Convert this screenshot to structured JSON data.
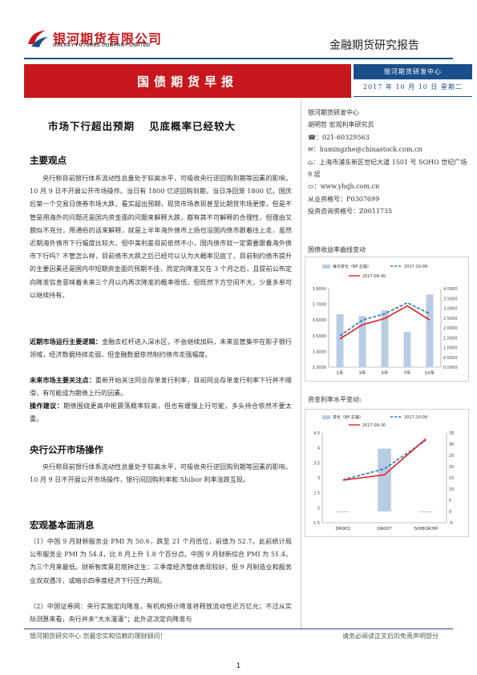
{
  "header": {
    "company_cn": "银河期货有限公司",
    "company_en": "GALAXY FUTURES COMPANY LIMITED",
    "report_type": "金融期货研究报告",
    "banner": "国债期货早报",
    "dept": "银河期货研发中心",
    "date": "2017 年 10 月 10 日   星期二"
  },
  "title": {
    "part1": "市场下行超出预期",
    "part2": "见底概率已经较大"
  },
  "sections": {
    "main_view": {
      "heading": "主要观点",
      "para1": "央行称目前银行体系流动性总量处于较高水平，可吸收央行逆回购到期等因素的影响，10 月 9 日不开展公开市场操作。当日有 1800 亿逆回购到期，当日净回笼 1800 亿。国庆后第一个交易日债券市场大跌，看实超出预期，现货市场表现甚至比期货市场更惨，但是不管是用海外的问题还是国内资金面的问题来解释大跌，都有其不可解释的合理性，但理由又貌似不充分，用通俗的话来解释，就是上半年海外债市上扬也没国内债市跟着往上走，虽然近期海外债市下行幅度比较大，但中美利差目前依然不小，国内债市就一定需要跟着海外债市下行吗？不管怎么样，目前债市大跌之后已经可以认为大概率见底了，目前制约债市提升的主要因素还是国内中短期资金面的预期不佳，而定向降准又在 3 个月之后，且提前公布定向降准信息意味着未来三个月以内再次降准的概率很低，但既然下方空间不大，少量多单可以继续持有。",
      "logic_label": "近期市场运行主要逻辑：",
      "logic_text": "金融去杠杆进入深水区，不会继续加码，未来监管集中在影子银行领域，经济数据持续走弱，但金融数据依然制约债市走强幅度。",
      "focus_label": "未来市场主要关注点：",
      "focus_text": "重新开始关注同业存单发行利率，目前同业存单发行利率下行并不顺滑，有可能成为期债上行的因素。",
      "advice_label": "操作建议：",
      "advice_text": "期债围绕更高中枢震荡概率较高，但也有缓慢上行可能，多头持仓依然不要太重。"
    },
    "open_market": {
      "heading": "央行公开市场操作",
      "para": "央行称目前银行体系流动性总量处于较高水平，可吸收央行逆回购到期等因素的影响，10 月 9 日不开展公开市场操作，银行间回购利率和 Shibor 利率涨跌互现。"
    },
    "macro": {
      "heading": "宏观基本面消息",
      "item1": "（1）中国 9 月财新服务业 PMI 为 50.6，跌至 21 个月低位，前值为 52.7。此前统计局公布服务业 PMI 为 54.4，比 8 月上升 1.8 个百分点。中国 9 月财新综合 PMI 为 51.4，为三个月来最低。财新智库莫尼塔钟正生：三季度经济整体表现较好，但 9 月制造业和服务业双双遇冷，或暗示四季度经济下行压力再现。",
      "item2": "（2）中国证券网：央行实施定向降准，有机构预计降准将释放流动性近万亿元；不过从实际测算来看，央行并未“大水漫灌”；此外这次定向降准与"
    }
  },
  "sidebar": {
    "org": "银河期货研发中心",
    "analyst": "胡明哲   宏观利率研究员",
    "phone": "021-60329563",
    "email": "humingzhe@chinastock.com.cn",
    "address": "上海市浦东新区世纪大道 1501 号 SOHO 世纪广场 9 层",
    "website": "www.yhqh.com.cn",
    "cert1": "从业资格号：F0307699",
    "cert2": "投资咨询资格号：Z0011735"
  },
  "icons": [
    "phone-icon",
    "email-icon",
    "location-icon",
    "monitor-icon"
  ],
  "chart_data": [
    {
      "type": "bar",
      "title": "国债收益率曲线变动",
      "categories": [
        "1年",
        "3年",
        "5年",
        "7年",
        "10年"
      ],
      "series": [
        {
          "name": "每日变化（BP,右轴）",
          "kind": "bar",
          "axis": "right",
          "values": [
            2.7,
            2.6,
            2.9,
            1.8,
            3.7
          ]
        },
        {
          "name": "2017-10-09",
          "kind": "line",
          "style": "dashed",
          "axis": "left",
          "values": [
            3.5,
            3.6,
            3.64,
            3.71,
            3.64
          ]
        },
        {
          "name": "2017-09-30",
          "kind": "line",
          "style": "solid",
          "axis": "left",
          "values": [
            3.48,
            3.57,
            3.61,
            3.69,
            3.6
          ]
        }
      ],
      "ylim_left": [
        3.3,
        3.8
      ],
      "ylim_right": [
        0.0,
        4.0
      ],
      "yticks_left": [
        "3.3000",
        "3.4000",
        "3.5000",
        "3.6000",
        "3.7000",
        "3.8000"
      ],
      "yticks_right": [
        "0.0000",
        "0.5000",
        "1.0000",
        "1.5000",
        "2.0000",
        "2.5000",
        "3.0000",
        "3.5000",
        "4.0000"
      ],
      "colors": {
        "bar": "#b8cce4",
        "dashed": "#2e75b6",
        "solid": "#e02020"
      }
    },
    {
      "type": "bar",
      "title": "资金利率水平变动:",
      "categories": [
        "DR001",
        "DR007",
        "SHIBOR3M"
      ],
      "series": [
        {
          "name": "变化（BP,右轴）",
          "kind": "bar",
          "axis": "right",
          "values": [
            0,
            28,
            0
          ]
        },
        {
          "name": "2017-10-09",
          "kind": "line",
          "style": "dashed",
          "axis": "left",
          "values": [
            2.93,
            3.3,
            4.25
          ]
        },
        {
          "name": "2017-09-30",
          "kind": "line",
          "style": "solid",
          "axis": "left",
          "values": [
            2.92,
            3.1,
            4.3
          ]
        }
      ],
      "ylim_left": [
        1.5,
        4.5
      ],
      "ylim_right": [
        -5,
        35
      ],
      "yticks_left": [
        "1.5",
        "2",
        "2.5",
        "3",
        "3.5",
        "4",
        "4.5"
      ],
      "yticks_right": [
        "-5",
        "0",
        "5",
        "10",
        "15",
        "20",
        "25",
        "30",
        "35"
      ],
      "colors": {
        "bar": "#b8cce4",
        "dashed": "#2e75b6",
        "solid": "#e02020"
      }
    }
  ],
  "footer": {
    "left": "银河期货研究中心  您最忠实和信赖的理财顾问！",
    "right": "请务必阅读正文后的免责声明部分",
    "page": "1"
  }
}
